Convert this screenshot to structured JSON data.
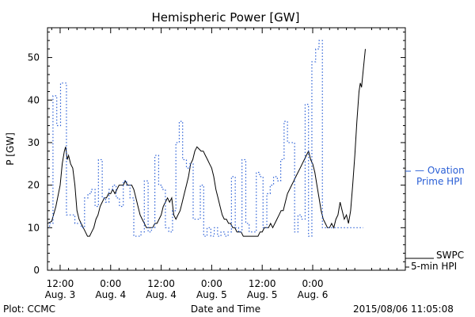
{
  "chart_data": {
    "type": "line",
    "title": "Hemispheric Power [GW]",
    "xlabel": "Date and Time",
    "ylabel": "P [GW]",
    "ylim": [
      0,
      57
    ],
    "yticks": [
      0,
      10,
      20,
      30,
      40,
      50
    ],
    "x_unit": "hours since 2015-08-03 00:00 UTC",
    "xlim": [
      9,
      94
    ],
    "xticks": [
      {
        "x": 12,
        "line1": "12:00",
        "line2": "Aug. 3"
      },
      {
        "x": 24,
        "line1": "0:00",
        "line2": "Aug. 4"
      },
      {
        "x": 36,
        "line1": "12:00",
        "line2": "Aug. 4"
      },
      {
        "x": 48,
        "line1": "0:00",
        "line2": "Aug. 5"
      },
      {
        "x": 60,
        "line1": "12:00",
        "line2": "Aug. 5"
      },
      {
        "x": 72,
        "line1": "0:00",
        "line2": "Aug. 6"
      }
    ],
    "grid": false,
    "legend_position": "right",
    "series": [
      {
        "name": "SWPC 5-min HPI",
        "legend_lines": [
          "SWPC",
          "5-min HPI"
        ],
        "color": "#000000",
        "style": "solid",
        "points": [
          [
            9,
            11
          ],
          [
            10,
            11.5
          ],
          [
            11,
            15
          ],
          [
            12,
            20
          ],
          [
            12.5,
            25
          ],
          [
            13,
            28
          ],
          [
            13.3,
            29
          ],
          [
            13.7,
            26
          ],
          [
            14,
            27
          ],
          [
            14.5,
            25
          ],
          [
            15,
            24
          ],
          [
            15.5,
            20
          ],
          [
            16,
            14
          ],
          [
            16.5,
            12
          ],
          [
            17,
            11
          ],
          [
            17.5,
            10
          ],
          [
            18,
            9
          ],
          [
            18.5,
            8
          ],
          [
            19,
            8
          ],
          [
            19.5,
            9
          ],
          [
            20,
            10
          ],
          [
            20.5,
            12
          ],
          [
            21,
            13
          ],
          [
            21.5,
            15
          ],
          [
            22,
            16
          ],
          [
            22.5,
            17
          ],
          [
            23,
            17
          ],
          [
            23.5,
            18
          ],
          [
            24,
            18
          ],
          [
            24.5,
            19
          ],
          [
            25,
            18
          ],
          [
            25.5,
            19
          ],
          [
            26,
            20
          ],
          [
            26.5,
            20
          ],
          [
            27,
            20
          ],
          [
            27.5,
            21
          ],
          [
            28,
            20
          ],
          [
            28.5,
            20
          ],
          [
            29,
            20
          ],
          [
            29.5,
            19
          ],
          [
            30,
            17
          ],
          [
            30.5,
            15
          ],
          [
            31,
            13
          ],
          [
            31.5,
            12
          ],
          [
            32,
            11
          ],
          [
            32.5,
            10
          ],
          [
            33,
            10
          ],
          [
            34,
            10
          ],
          [
            34.5,
            11
          ],
          [
            35,
            11
          ],
          [
            35.5,
            12
          ],
          [
            36,
            13
          ],
          [
            36.5,
            15
          ],
          [
            37,
            16
          ],
          [
            37.5,
            17
          ],
          [
            38,
            16
          ],
          [
            38.5,
            17
          ],
          [
            39,
            13
          ],
          [
            39.5,
            12
          ],
          [
            40,
            13
          ],
          [
            40.5,
            14
          ],
          [
            41,
            16
          ],
          [
            41.5,
            18
          ],
          [
            42,
            20
          ],
          [
            42.5,
            22
          ],
          [
            43,
            25
          ],
          [
            43.5,
            26
          ],
          [
            44,
            28
          ],
          [
            44.5,
            29
          ],
          [
            45,
            28.5
          ],
          [
            45.5,
            28
          ],
          [
            46,
            28
          ],
          [
            46.5,
            27
          ],
          [
            47,
            26
          ],
          [
            47.5,
            25
          ],
          [
            48,
            24
          ],
          [
            48.5,
            22
          ],
          [
            49,
            19
          ],
          [
            49.5,
            17
          ],
          [
            50,
            15
          ],
          [
            50.5,
            13
          ],
          [
            51,
            12
          ],
          [
            51.5,
            12
          ],
          [
            52,
            11
          ],
          [
            52.5,
            11
          ],
          [
            53,
            10
          ],
          [
            53.5,
            10
          ],
          [
            54,
            9
          ],
          [
            54.5,
            9
          ],
          [
            55,
            9
          ],
          [
            55.5,
            8
          ],
          [
            56,
            8
          ],
          [
            57,
            8
          ],
          [
            58,
            8
          ],
          [
            59,
            8
          ],
          [
            59.5,
            9
          ],
          [
            60,
            9
          ],
          [
            60.5,
            10
          ],
          [
            61,
            10
          ],
          [
            61.5,
            10
          ],
          [
            62,
            11
          ],
          [
            62.5,
            10
          ],
          [
            63,
            11
          ],
          [
            63.5,
            12
          ],
          [
            64,
            13
          ],
          [
            64.5,
            14
          ],
          [
            65,
            14
          ],
          [
            65.5,
            16
          ],
          [
            66,
            18
          ],
          [
            66.5,
            19
          ],
          [
            67,
            20
          ],
          [
            67.5,
            21
          ],
          [
            68,
            22
          ],
          [
            68.5,
            23
          ],
          [
            69,
            24
          ],
          [
            69.5,
            25
          ],
          [
            70,
            26
          ],
          [
            70.5,
            27
          ],
          [
            71,
            28
          ],
          [
            71.5,
            26
          ],
          [
            72,
            25
          ],
          [
            72.5,
            23
          ],
          [
            73,
            20
          ],
          [
            73.5,
            17
          ],
          [
            74,
            14
          ],
          [
            74.5,
            12
          ],
          [
            75,
            11
          ],
          [
            75.5,
            10
          ],
          [
            76,
            10
          ],
          [
            76.5,
            11
          ],
          [
            77,
            10
          ],
          [
            77.5,
            12
          ],
          [
            78,
            13
          ],
          [
            78.5,
            16
          ],
          [
            79,
            14
          ],
          [
            79.5,
            12
          ],
          [
            80,
            13
          ],
          [
            80.5,
            11
          ],
          [
            81,
            14
          ],
          [
            81.5,
            20
          ],
          [
            82,
            27
          ],
          [
            82.5,
            35
          ],
          [
            83,
            42
          ],
          [
            83.3,
            44
          ],
          [
            83.6,
            43
          ],
          [
            84,
            47
          ],
          [
            84.5,
            52
          ]
        ]
      },
      {
        "name": "Ovation Prime HPI",
        "legend_lines": [
          "— Ovation",
          "Prime HPI"
        ],
        "color": "#2a5fd6",
        "style": "dotted-step",
        "steps": [
          [
            9,
            10
          ],
          [
            9.5,
            11
          ],
          [
            10.3,
            41
          ],
          [
            11.2,
            34
          ],
          [
            12.1,
            44
          ],
          [
            13.5,
            13
          ],
          [
            15.5,
            11
          ],
          [
            17,
            10
          ],
          [
            17.8,
            17
          ],
          [
            18.6,
            18
          ],
          [
            19.4,
            19
          ],
          [
            20.3,
            15
          ],
          [
            21.1,
            26
          ],
          [
            22,
            17
          ],
          [
            22.8,
            16
          ],
          [
            23.6,
            19
          ],
          [
            24.5,
            20
          ],
          [
            25.3,
            17
          ],
          [
            26.1,
            15
          ],
          [
            27,
            21
          ],
          [
            27.8,
            20
          ],
          [
            28.6,
            17
          ],
          [
            29.5,
            8
          ],
          [
            31.2,
            9
          ],
          [
            32,
            21
          ],
          [
            32.9,
            9
          ],
          [
            33.7,
            10
          ],
          [
            34.5,
            27
          ],
          [
            35.4,
            20
          ],
          [
            36.2,
            19
          ],
          [
            37,
            10
          ],
          [
            37.8,
            9
          ],
          [
            38.7,
            14
          ],
          [
            39.5,
            30
          ],
          [
            40.3,
            35
          ],
          [
            41.1,
            26
          ],
          [
            42,
            24
          ],
          [
            42.8,
            25
          ],
          [
            43.6,
            12
          ],
          [
            45.3,
            20
          ],
          [
            46.1,
            8
          ],
          [
            46.9,
            10
          ],
          [
            47.8,
            8
          ],
          [
            48.6,
            10
          ],
          [
            49.4,
            8
          ],
          [
            50.2,
            9
          ],
          [
            51.1,
            8
          ],
          [
            51.9,
            9
          ],
          [
            52.7,
            22
          ],
          [
            53.6,
            10
          ],
          [
            54.4,
            9
          ],
          [
            55.2,
            26
          ],
          [
            56.1,
            11
          ],
          [
            56.9,
            9
          ],
          [
            58.6,
            23
          ],
          [
            59.4,
            22
          ],
          [
            60.2,
            10
          ],
          [
            61.1,
            18
          ],
          [
            61.9,
            20
          ],
          [
            62.7,
            22
          ],
          [
            63.6,
            21
          ],
          [
            64.4,
            26
          ],
          [
            65.2,
            35
          ],
          [
            66,
            30
          ],
          [
            67.7,
            9
          ],
          [
            68.5,
            13
          ],
          [
            69.3,
            12
          ],
          [
            70.2,
            39
          ],
          [
            71,
            8
          ],
          [
            71.8,
            49
          ],
          [
            72.7,
            52
          ],
          [
            73.5,
            54
          ],
          [
            74.3,
            10
          ]
        ]
      }
    ],
    "footer": {
      "left": "Plot: CCMC",
      "right": "2015/08/06 11:05:08"
    }
  }
}
